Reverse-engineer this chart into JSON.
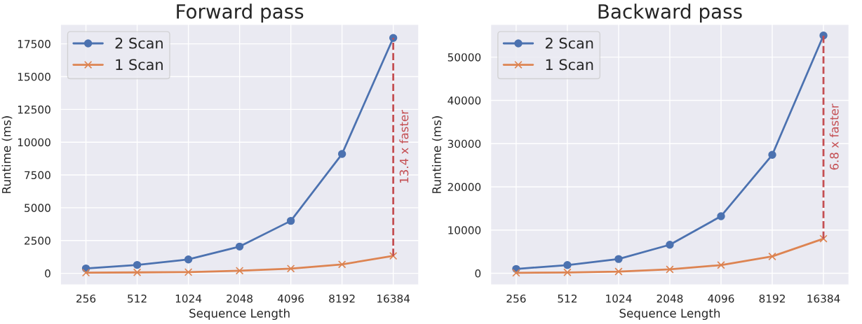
{
  "chart_data": [
    {
      "type": "line",
      "title": "Forward pass",
      "xlabel": "Sequence Length",
      "ylabel": "Runtime (ms)",
      "categories": [
        "256",
        "512",
        "1024",
        "2048",
        "4096",
        "8192",
        "16384"
      ],
      "series": [
        {
          "name": "2 Scan",
          "color": "#4c72b0",
          "marker": "circle",
          "values": [
            370,
            640,
            1060,
            2040,
            4000,
            9100,
            17950
          ]
        },
        {
          "name": "1 Scan",
          "color": "#dd8452",
          "marker": "cross",
          "values": [
            50,
            70,
            90,
            200,
            360,
            680,
            1330
          ]
        },
        {
          "color": "#c44e52",
          "line_style": "dashed",
          "marker": "none",
          "x": [
            "16384",
            "16384"
          ],
          "values": [
            1330,
            17950
          ]
        }
      ],
      "ylim": [
        -900,
        18990
      ],
      "yticks": [
        0,
        2500,
        5000,
        7500,
        10000,
        12500,
        15000,
        17500
      ],
      "annotations": [
        "13.4 x faster"
      ],
      "grid": true,
      "legend": "top left",
      "line_style": "solid"
    },
    {
      "type": "line",
      "title": "Backward pass",
      "xlabel": "Sequence Length",
      "ylabel": "Runtime (ms)",
      "categories": [
        "256",
        "512",
        "1024",
        "2048",
        "4096",
        "8192",
        "16384"
      ],
      "series": [
        {
          "name": "2 Scan",
          "color": "#4c72b0",
          "marker": "circle",
          "values": [
            1000,
            1900,
            3300,
            6600,
            13200,
            27400,
            55000
          ]
        },
        {
          "name": "1 Scan",
          "color": "#dd8452",
          "marker": "cross",
          "values": [
            100,
            200,
            400,
            900,
            1900,
            3900,
            8000
          ]
        },
        {
          "color": "#c44e52",
          "line_style": "dashed",
          "marker": "none",
          "x": [
            "16384",
            "16384"
          ],
          "values": [
            8000,
            55000
          ]
        }
      ],
      "ylim": [
        -2740,
        57600
      ],
      "yticks": [
        0,
        10000,
        20000,
        30000,
        40000,
        50000
      ],
      "annotations": [
        "6.8 x faster"
      ],
      "grid": true,
      "legend": "top left",
      "line_style": "solid"
    }
  ]
}
